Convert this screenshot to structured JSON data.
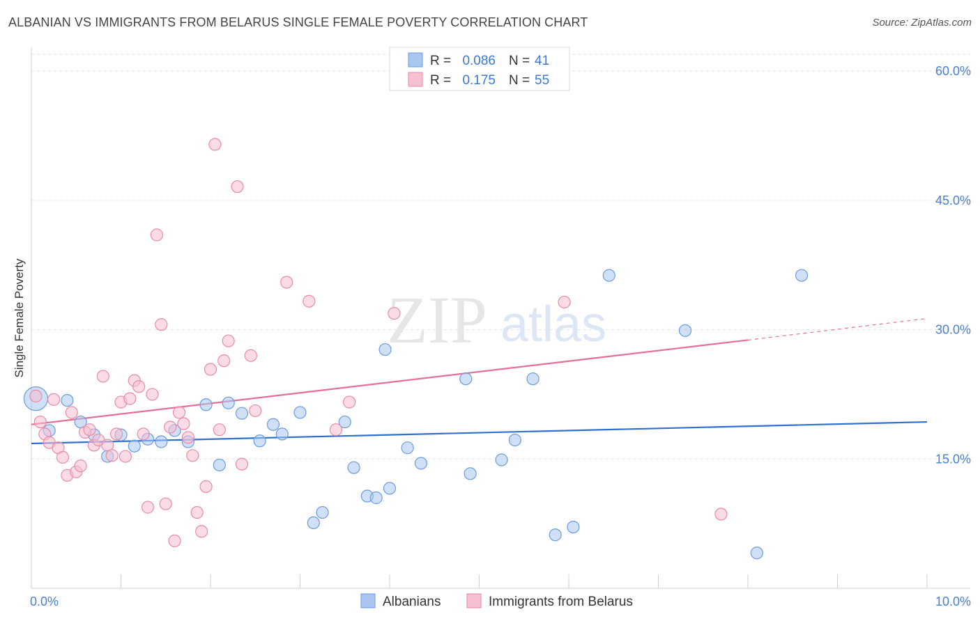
{
  "title": "ALBANIAN VS IMMIGRANTS FROM BELARUS SINGLE FEMALE POVERTY CORRELATION CHART",
  "source": "Source: ZipAtlas.com",
  "watermark": {
    "zip": "ZIP",
    "atlas": "atlas"
  },
  "chart_data": {
    "type": "scatter",
    "ylabel": "Single Female Poverty",
    "xlim": [
      0,
      10
    ],
    "ylim": [
      0,
      63
    ],
    "x_ticks": [
      {
        "value": 0,
        "label": "0.0%"
      },
      {
        "value": 10,
        "label": "10.0%"
      }
    ],
    "y_ticks": [
      {
        "value": 15,
        "label": "15.0%"
      },
      {
        "value": 30,
        "label": "30.0%"
      },
      {
        "value": 45,
        "label": "45.0%"
      },
      {
        "value": 60,
        "label": "60.0%"
      }
    ],
    "legend_top": [
      {
        "r_label": "R =",
        "r_value": "0.086",
        "n_label": "N =",
        "n_value": "41"
      },
      {
        "r_label": "R =",
        "r_value": "0.175",
        "n_label": "N =",
        "n_value": "55"
      }
    ],
    "series": [
      {
        "name": "Albanians",
        "color": "#a8c6f0",
        "stroke": "#6b9be0",
        "line_color": "#2f6fd0",
        "trend": {
          "x0": 0,
          "y0": 16.8,
          "x1": 10,
          "y1": 19.3
        },
        "points": [
          [
            0.05,
            22.0
          ],
          [
            0.2,
            18.3
          ],
          [
            0.4,
            21.8
          ],
          [
            0.55,
            19.3
          ],
          [
            0.7,
            17.8
          ],
          [
            0.85,
            15.3
          ],
          [
            1.0,
            17.8
          ],
          [
            1.15,
            16.5
          ],
          [
            1.3,
            17.3
          ],
          [
            1.45,
            17.0
          ],
          [
            1.6,
            18.3
          ],
          [
            1.75,
            17.0
          ],
          [
            1.95,
            21.3
          ],
          [
            2.1,
            14.3
          ],
          [
            2.2,
            21.5
          ],
          [
            2.35,
            20.3
          ],
          [
            2.55,
            17.1
          ],
          [
            2.7,
            19.0
          ],
          [
            2.8,
            17.9
          ],
          [
            3.0,
            20.4
          ],
          [
            3.15,
            7.6
          ],
          [
            3.25,
            8.8
          ],
          [
            3.5,
            19.3
          ],
          [
            3.6,
            14.0
          ],
          [
            3.75,
            10.7
          ],
          [
            3.85,
            10.5
          ],
          [
            3.95,
            27.7
          ],
          [
            4.0,
            11.6
          ],
          [
            4.2,
            16.3
          ],
          [
            4.35,
            14.5
          ],
          [
            4.85,
            24.3
          ],
          [
            4.9,
            13.3
          ],
          [
            5.25,
            14.9
          ],
          [
            5.4,
            17.2
          ],
          [
            5.6,
            24.3
          ],
          [
            5.85,
            6.2
          ],
          [
            6.05,
            7.1
          ],
          [
            6.45,
            36.3
          ],
          [
            7.3,
            29.9
          ],
          [
            8.1,
            4.1
          ],
          [
            8.6,
            36.3
          ]
        ]
      },
      {
        "name": "Immigrants from Belarus",
        "color": "#f7bfd2",
        "stroke": "#e88aaa",
        "line_color": "#e56f9a",
        "trend": {
          "x0": 0,
          "y0": 19.0,
          "x1": 8.0,
          "y1": 28.8
        },
        "trend_dash": {
          "x0": 8.0,
          "y0": 28.8,
          "x1": 10,
          "y1": 31.3
        },
        "points": [
          [
            0.05,
            22.3
          ],
          [
            0.1,
            19.3
          ],
          [
            0.15,
            17.9
          ],
          [
            0.2,
            16.9
          ],
          [
            0.25,
            21.9
          ],
          [
            0.3,
            16.3
          ],
          [
            0.35,
            15.2
          ],
          [
            0.4,
            13.1
          ],
          [
            0.45,
            20.4
          ],
          [
            0.5,
            13.5
          ],
          [
            0.55,
            14.2
          ],
          [
            0.6,
            18.1
          ],
          [
            0.65,
            18.4
          ],
          [
            0.7,
            16.6
          ],
          [
            0.75,
            17.2
          ],
          [
            0.8,
            24.6
          ],
          [
            0.85,
            16.6
          ],
          [
            0.9,
            15.4
          ],
          [
            0.95,
            17.9
          ],
          [
            1.0,
            21.6
          ],
          [
            1.05,
            15.3
          ],
          [
            1.1,
            22.0
          ],
          [
            1.15,
            24.1
          ],
          [
            1.2,
            23.4
          ],
          [
            1.25,
            17.9
          ],
          [
            1.3,
            9.4
          ],
          [
            1.35,
            22.5
          ],
          [
            1.4,
            41.0
          ],
          [
            1.45,
            30.6
          ],
          [
            1.5,
            9.8
          ],
          [
            1.55,
            18.7
          ],
          [
            1.6,
            5.5
          ],
          [
            1.65,
            20.4
          ],
          [
            1.7,
            19.1
          ],
          [
            1.75,
            17.5
          ],
          [
            1.8,
            15.4
          ],
          [
            1.85,
            8.8
          ],
          [
            1.9,
            6.6
          ],
          [
            1.95,
            11.8
          ],
          [
            2.0,
            25.4
          ],
          [
            2.1,
            18.4
          ],
          [
            2.15,
            26.4
          ],
          [
            2.05,
            51.5
          ],
          [
            2.2,
            28.7
          ],
          [
            2.3,
            46.6
          ],
          [
            2.35,
            14.4
          ],
          [
            2.45,
            27.0
          ],
          [
            2.5,
            20.6
          ],
          [
            2.85,
            35.5
          ],
          [
            3.1,
            33.3
          ],
          [
            3.4,
            18.4
          ],
          [
            3.55,
            21.6
          ],
          [
            4.05,
            31.9
          ],
          [
            5.95,
            33.2
          ],
          [
            7.7,
            8.6
          ]
        ]
      }
    ]
  }
}
